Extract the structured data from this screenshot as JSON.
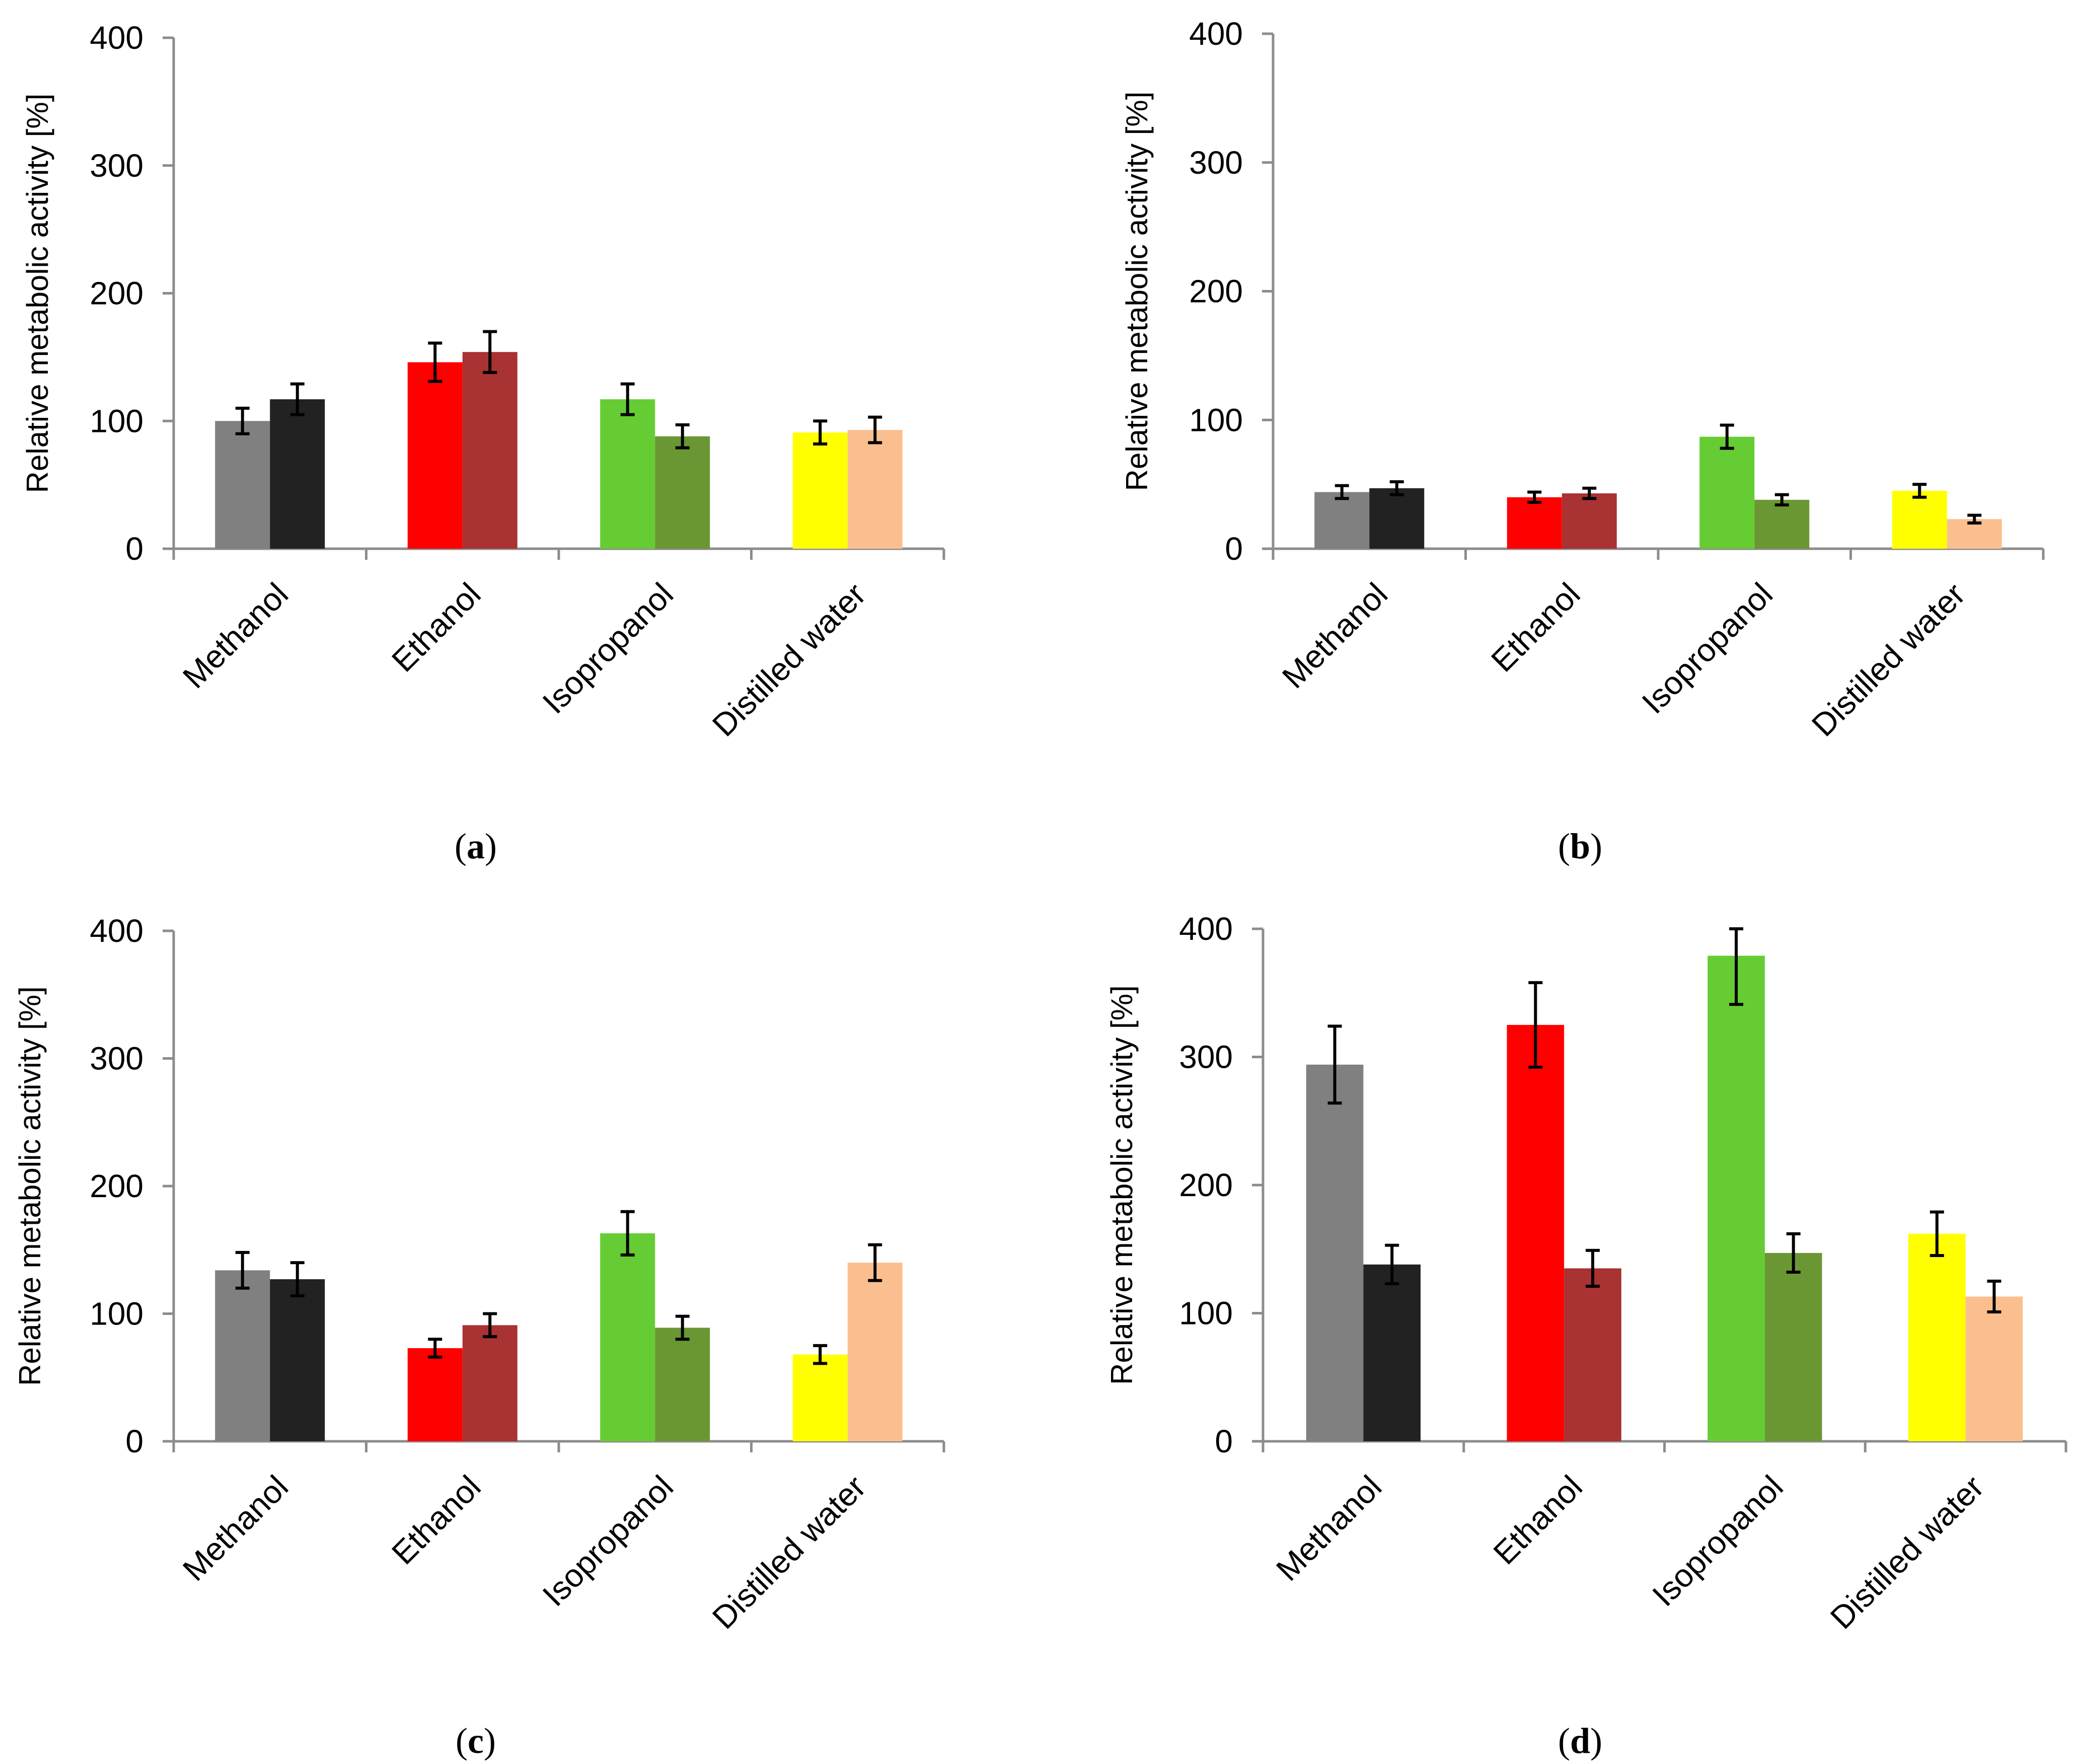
{
  "chart_data": [
    {
      "type": "bar",
      "panel_label": "a",
      "ylabel": "Relative metabolic activity [%]",
      "ylim": [
        0,
        400
      ],
      "yticks": [
        0,
        100,
        200,
        300,
        400
      ],
      "categories": [
        "Methanol",
        "Ethanol",
        "Isopropanol",
        "Distilled water"
      ],
      "series": [
        {
          "values": [
            100,
            146,
            117,
            91
          ],
          "errors": [
            10,
            15,
            12,
            9
          ],
          "colors": [
            "#808080",
            "#ff0000",
            "#66cc33",
            "#ffff00"
          ]
        },
        {
          "values": [
            117,
            154,
            88,
            93
          ],
          "errors": [
            12,
            16,
            9,
            10
          ],
          "colors": [
            "#222222",
            "#a93232",
            "#6a9733",
            "#fbbf8f"
          ]
        }
      ],
      "grid": false,
      "legend": "none"
    },
    {
      "type": "bar",
      "panel_label": "b",
      "ylabel": "Relative metabolic activity [%]",
      "ylim": [
        0,
        400
      ],
      "yticks": [
        0,
        100,
        200,
        300,
        400
      ],
      "categories": [
        "Methanol",
        "Ethanol",
        "Isopropanol",
        "Distilled water"
      ],
      "series": [
        {
          "values": [
            44,
            40,
            87,
            45
          ],
          "errors": [
            5,
            4,
            9,
            5
          ],
          "colors": [
            "#808080",
            "#ff0000",
            "#66cc33",
            "#ffff00"
          ]
        },
        {
          "values": [
            47,
            43,
            38,
            23
          ],
          "errors": [
            5,
            4,
            4,
            3
          ],
          "colors": [
            "#222222",
            "#a93232",
            "#6a9733",
            "#fbbf8f"
          ]
        }
      ],
      "grid": false,
      "legend": "none"
    },
    {
      "type": "bar",
      "panel_label": "c",
      "ylabel": "Relative metabolic activity [%]",
      "ylim": [
        0,
        400
      ],
      "yticks": [
        0,
        100,
        200,
        300,
        400
      ],
      "categories": [
        "Methanol",
        "Ethanol",
        "Isopropanol",
        "Distilled water"
      ],
      "series": [
        {
          "values": [
            134,
            73,
            163,
            68
          ],
          "errors": [
            14,
            7,
            17,
            7
          ],
          "colors": [
            "#808080",
            "#ff0000",
            "#66cc33",
            "#ffff00"
          ]
        },
        {
          "values": [
            127,
            91,
            89,
            140
          ],
          "errors": [
            13,
            9,
            9,
            14
          ],
          "colors": [
            "#222222",
            "#a93232",
            "#6a9733",
            "#fbbf8f"
          ]
        }
      ],
      "grid": false,
      "legend": "none"
    },
    {
      "type": "bar",
      "panel_label": "d",
      "ylabel": "Relative metabolic activity [%]",
      "ylim": [
        0,
        400
      ],
      "yticks": [
        0,
        100,
        200,
        300,
        400
      ],
      "categories": [
        "Methanol",
        "Ethanol",
        "Isopropanol",
        "Distilled water"
      ],
      "series": [
        {
          "values": [
            294,
            325,
            379,
            162
          ],
          "errors": [
            30,
            33,
            38,
            17
          ],
          "colors": [
            "#808080",
            "#ff0000",
            "#66cc33",
            "#ffff00"
          ]
        },
        {
          "values": [
            138,
            135,
            147,
            113
          ],
          "errors": [
            15,
            14,
            15,
            12
          ],
          "colors": [
            "#222222",
            "#a93232",
            "#6a9733",
            "#fbbf8f"
          ]
        }
      ],
      "grid": false,
      "legend": "none"
    }
  ],
  "colors": {
    "axis": "#8c8c8c",
    "error_bar": "#000000",
    "background": "#ffffff"
  }
}
